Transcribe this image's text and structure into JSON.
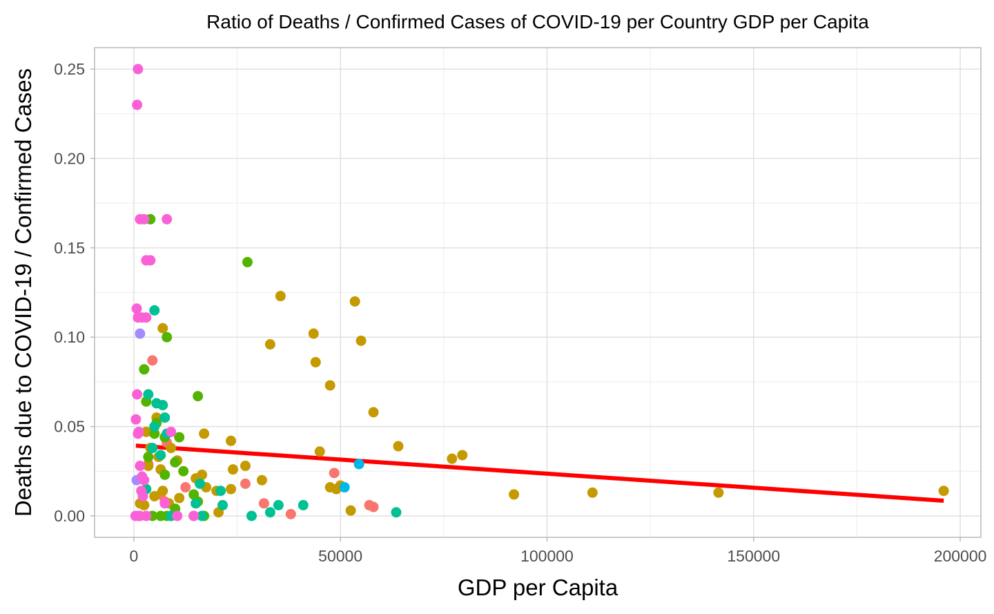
{
  "chart_data": {
    "type": "scatter",
    "title": "Ratio of Deaths / Confirmed Cases of COVID-19 per Country GDP per Capita",
    "xlabel": "GDP per Capita",
    "ylabel": "Deaths due to COVID-19 / Confirmed Cases",
    "xlim": [
      -9500,
      205000
    ],
    "ylim": [
      -0.012,
      0.262
    ],
    "grid": true,
    "x_ticks": [
      0,
      50000,
      100000,
      150000,
      200000
    ],
    "x_tick_labels": [
      "0",
      "50000",
      "100000",
      "150000",
      "200000"
    ],
    "y_ticks": [
      0.0,
      0.05,
      0.1,
      0.15,
      0.2,
      0.25
    ],
    "y_tick_labels": [
      "0.00",
      "0.05",
      "0.10",
      "0.15",
      "0.20",
      "0.25"
    ],
    "trend_line": {
      "color": "#ff0000",
      "x": [
        500,
        196000
      ],
      "y": [
        0.0393,
        0.0085
      ]
    },
    "series": [
      {
        "color": "#F8766D",
        "points": [
          [
            4500,
            0.087
          ],
          [
            8000,
            0.041
          ],
          [
            12500,
            0.016
          ],
          [
            27000,
            0.018
          ],
          [
            31500,
            0.007
          ],
          [
            38000,
            0.001
          ],
          [
            48500,
            0.024
          ],
          [
            57000,
            0.006
          ],
          [
            58000,
            0.005
          ],
          [
            1500,
            0.0
          ],
          [
            3500,
            0.029
          ],
          [
            6500,
            0.012
          ],
          [
            7500,
            0.008
          ]
        ]
      },
      {
        "color": "#C49A00",
        "points": [
          [
            7000,
            0.105
          ],
          [
            5500,
            0.055
          ],
          [
            3000,
            0.047
          ],
          [
            17000,
            0.046
          ],
          [
            23500,
            0.042
          ],
          [
            4000,
            0.038
          ],
          [
            6000,
            0.033
          ],
          [
            9000,
            0.038
          ],
          [
            27000,
            0.028
          ],
          [
            24000,
            0.026
          ],
          [
            31000,
            0.02
          ],
          [
            15000,
            0.021
          ],
          [
            17500,
            0.016
          ],
          [
            20000,
            0.014
          ],
          [
            23500,
            0.015
          ],
          [
            20500,
            0.002
          ],
          [
            11000,
            0.01
          ],
          [
            16500,
            0.023
          ],
          [
            35500,
            0.123
          ],
          [
            33000,
            0.096
          ],
          [
            43500,
            0.102
          ],
          [
            44000,
            0.086
          ],
          [
            47500,
            0.073
          ],
          [
            45000,
            0.036
          ],
          [
            53500,
            0.12
          ],
          [
            55000,
            0.098
          ],
          [
            58000,
            0.058
          ],
          [
            64000,
            0.039
          ],
          [
            77000,
            0.032
          ],
          [
            79500,
            0.034
          ],
          [
            47500,
            0.016
          ],
          [
            49000,
            0.015
          ],
          [
            50000,
            0.017
          ],
          [
            52500,
            0.003
          ],
          [
            92000,
            0.012
          ],
          [
            111000,
            0.013
          ],
          [
            141500,
            0.013
          ],
          [
            196000,
            0.014
          ],
          [
            1500,
            0.007
          ],
          [
            2500,
            0.006
          ],
          [
            5000,
            0.011
          ],
          [
            7000,
            0.014
          ],
          [
            6500,
            0.026
          ],
          [
            3500,
            0.028
          ],
          [
            8500,
            0.007
          ],
          [
            10500,
            0.031
          ]
        ]
      },
      {
        "color": "#53B400",
        "points": [
          [
            4000,
            0.166
          ],
          [
            27500,
            0.142
          ],
          [
            2500,
            0.082
          ],
          [
            8000,
            0.1
          ],
          [
            15500,
            0.067
          ],
          [
            3000,
            0.064
          ],
          [
            5500,
            0.052
          ],
          [
            7500,
            0.044
          ],
          [
            11000,
            0.044
          ],
          [
            3500,
            0.033
          ],
          [
            10000,
            0.03
          ],
          [
            12000,
            0.025
          ],
          [
            7500,
            0.023
          ],
          [
            14500,
            0.012
          ],
          [
            15500,
            0.008
          ],
          [
            10000,
            0.004
          ],
          [
            4500,
            0.0
          ],
          [
            8000,
            0.0
          ],
          [
            9000,
            0.0
          ],
          [
            17000,
            0.0
          ],
          [
            6500,
            0.0
          ],
          [
            5000,
            0.046
          ]
        ]
      },
      {
        "color": "#00C094",
        "points": [
          [
            5000,
            0.115
          ],
          [
            3500,
            0.068
          ],
          [
            5500,
            0.063
          ],
          [
            7000,
            0.062
          ],
          [
            7500,
            0.055
          ],
          [
            5000,
            0.05
          ],
          [
            4500,
            0.038
          ],
          [
            6500,
            0.034
          ],
          [
            8000,
            0.046
          ],
          [
            3000,
            0.015
          ],
          [
            21500,
            0.006
          ],
          [
            15000,
            0.007
          ],
          [
            21000,
            0.014
          ],
          [
            16000,
            0.018
          ],
          [
            28500,
            0.0
          ],
          [
            33000,
            0.002
          ],
          [
            35000,
            0.006
          ],
          [
            41000,
            0.006
          ],
          [
            63500,
            0.002
          ],
          [
            9000,
            0.0
          ],
          [
            14500,
            0.0
          ],
          [
            16500,
            0.0
          ]
        ]
      },
      {
        "color": "#00B6EB",
        "points": [
          [
            54500,
            0.029
          ],
          [
            51000,
            0.016
          ]
        ]
      },
      {
        "color": "#A58AFF",
        "points": [
          [
            1500,
            0.102
          ],
          [
            700,
            0.02
          ]
        ]
      },
      {
        "color": "#FB61D7",
        "points": [
          [
            1000,
            0.25
          ],
          [
            800,
            0.23
          ],
          [
            1500,
            0.166
          ],
          [
            2500,
            0.166
          ],
          [
            8000,
            0.166
          ],
          [
            3000,
            0.143
          ],
          [
            4000,
            0.143
          ],
          [
            700,
            0.116
          ],
          [
            1000,
            0.111
          ],
          [
            2000,
            0.111
          ],
          [
            3000,
            0.111
          ],
          [
            800,
            0.068
          ],
          [
            500,
            0.054
          ],
          [
            1000,
            0.046
          ],
          [
            1200,
            0.047
          ],
          [
            9000,
            0.047
          ],
          [
            1500,
            0.028
          ],
          [
            2000,
            0.022
          ],
          [
            2500,
            0.02
          ],
          [
            1800,
            0.014
          ],
          [
            2200,
            0.011
          ],
          [
            400,
            0.0
          ],
          [
            1200,
            0.0
          ],
          [
            3000,
            0.0
          ],
          [
            10500,
            0.0
          ],
          [
            14500,
            0.0
          ],
          [
            7500,
            0.007
          ]
        ]
      }
    ]
  }
}
